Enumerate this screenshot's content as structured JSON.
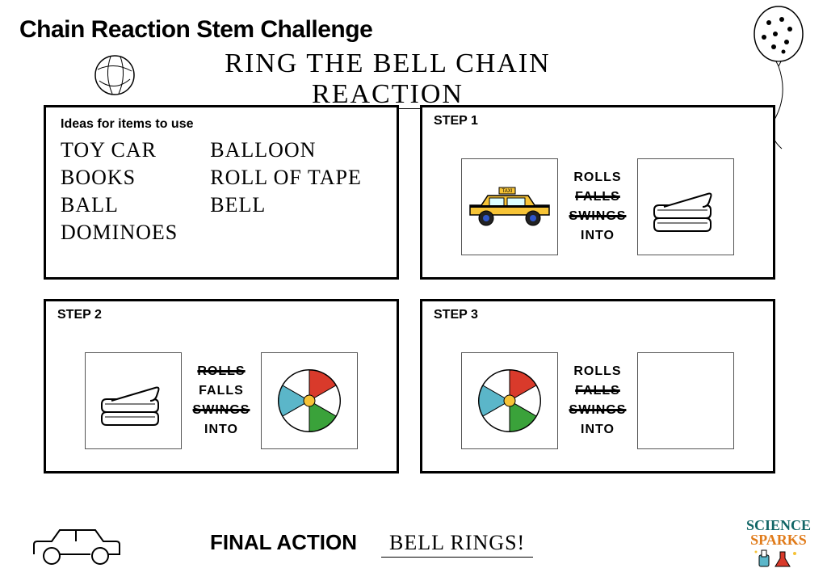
{
  "heading": "Chain Reaction Stem Challenge",
  "subtitle": "RING THE BELL CHAIN REACTION",
  "ideas": {
    "heading": "Ideas for items to use",
    "col1": [
      "TOY CAR",
      "BOOKS",
      "BALL",
      "DOMINOES"
    ],
    "col2": [
      "BALLOON",
      "ROLL OF TAPE",
      "BELL"
    ]
  },
  "steps": {
    "s1": {
      "label": "STEP 1",
      "verbs": [
        {
          "text": "ROLLS",
          "strike": false
        },
        {
          "text": "FALLS",
          "strike": true
        },
        {
          "text": "SWINGS",
          "strike": true
        },
        {
          "text": "INTO",
          "strike": false
        }
      ],
      "left_icon": "taxi",
      "right_icon": "books"
    },
    "s2": {
      "label": "STEP 2",
      "verbs": [
        {
          "text": "ROLLS",
          "strike": true
        },
        {
          "text": "FALLS",
          "strike": false
        },
        {
          "text": "SWINGS",
          "strike": true
        },
        {
          "text": "INTO",
          "strike": false
        }
      ],
      "left_icon": "books",
      "right_icon": "beachball"
    },
    "s3": {
      "label": "STEP 3",
      "verbs": [
        {
          "text": "ROLLS",
          "strike": false
        },
        {
          "text": "FALLS",
          "strike": true
        },
        {
          "text": "SWINGS",
          "strike": true
        },
        {
          "text": "INTO",
          "strike": false
        }
      ],
      "left_icon": "beachball",
      "right_icon": "empty"
    }
  },
  "final": {
    "label": "FINAL ACTION",
    "value": "BELL RINGS!"
  },
  "logo": {
    "line1": "SCIENCE",
    "line2": "SPARKS"
  },
  "colors": {
    "taxi_body": "#f7c436",
    "taxi_wheel": "#2f56c9",
    "ball_red": "#d93a2b",
    "ball_blue": "#5bb6c9",
    "ball_green": "#3aa23a",
    "ball_yellow": "#f5c236"
  }
}
